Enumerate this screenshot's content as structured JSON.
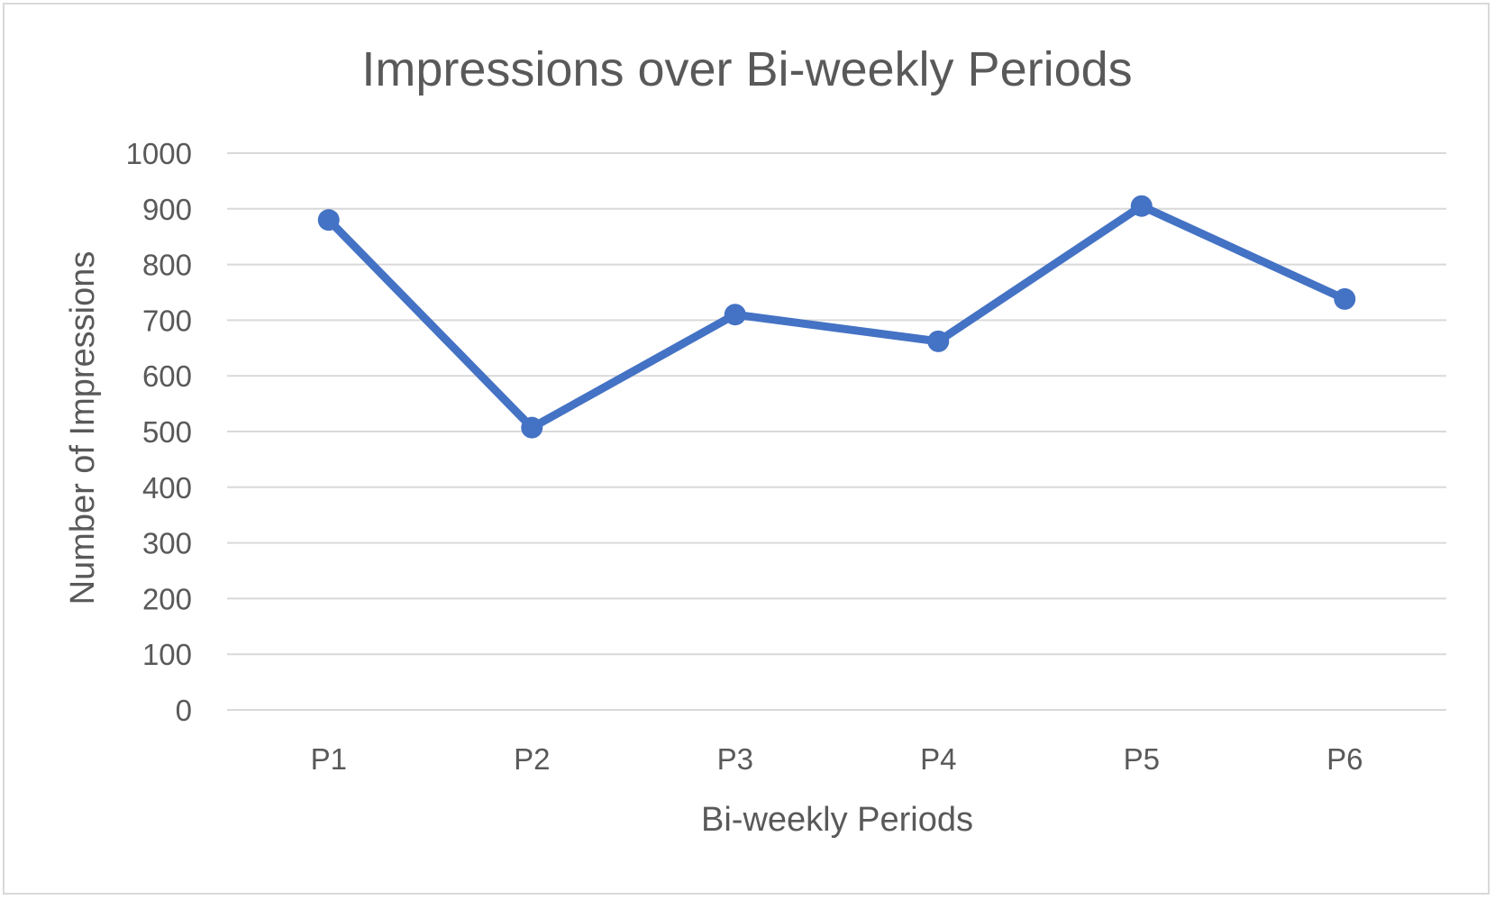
{
  "chart_data": {
    "type": "line",
    "title": "Impressions over Bi-weekly Periods",
    "xlabel": "Bi-weekly Periods",
    "ylabel": "Number of Impressions",
    "categories": [
      "P1",
      "P2",
      "P3",
      "P4",
      "P5",
      "P6"
    ],
    "series": [
      {
        "values": [
          880,
          507,
          710,
          662,
          905,
          738
        ],
        "color": "#4472C4"
      }
    ],
    "ylim": [
      0,
      1000
    ],
    "yticks": [
      0,
      100,
      200,
      300,
      400,
      500,
      600,
      700,
      800,
      900,
      1000
    ],
    "grid": true,
    "legend": "none"
  }
}
